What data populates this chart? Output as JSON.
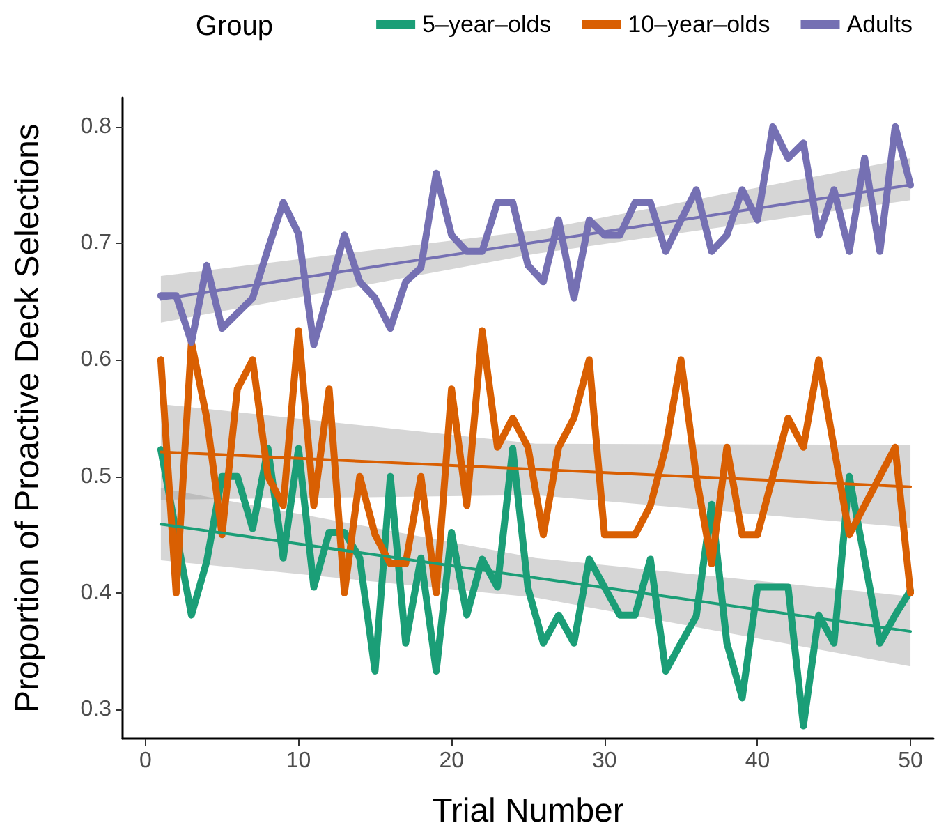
{
  "chart_data": {
    "type": "line",
    "xlabel": "Trial Number",
    "ylabel": "Proportion of Proactive Deck Selections",
    "legend_title": "Group",
    "legend": "top right",
    "grid": false,
    "xlim": [
      -1.5,
      51.5
    ],
    "xticks": [
      0,
      10,
      20,
      30,
      40,
      50
    ],
    "ylim": [
      0.275,
      0.825
    ],
    "yticks": [
      0.3,
      0.4,
      0.5,
      0.6,
      0.7,
      0.8
    ],
    "x": [
      1,
      2,
      3,
      4,
      5,
      6,
      7,
      8,
      9,
      10,
      11,
      12,
      13,
      14,
      15,
      16,
      17,
      18,
      19,
      20,
      21,
      22,
      23,
      24,
      25,
      26,
      27,
      28,
      29,
      30,
      31,
      32,
      33,
      34,
      35,
      36,
      37,
      38,
      39,
      40,
      41,
      42,
      43,
      44,
      45,
      46,
      47,
      48,
      49,
      50
    ],
    "series": [
      {
        "name": "5–year–olds",
        "color": "#1b9e77",
        "values": [
          0.523,
          0.452,
          0.381,
          0.427,
          0.5,
          0.5,
          0.455,
          0.524,
          0.43,
          0.524,
          0.405,
          0.452,
          0.452,
          0.43,
          0.333,
          0.5,
          0.357,
          0.43,
          0.333,
          0.452,
          0.381,
          0.429,
          0.405,
          0.524,
          0.404,
          0.357,
          0.381,
          0.357,
          0.429,
          0.405,
          0.381,
          0.381,
          0.429,
          0.333,
          0.357,
          0.38,
          0.476,
          0.357,
          0.31,
          0.405,
          0.405,
          0.405,
          0.286,
          0.381,
          0.357,
          0.5,
          0.429,
          0.357,
          0.381,
          0.402
        ]
      },
      {
        "name": "10–year–olds",
        "color": "#d95f02",
        "values": [
          0.6,
          0.4,
          0.615,
          0.55,
          0.45,
          0.575,
          0.6,
          0.5,
          0.475,
          0.625,
          0.475,
          0.575,
          0.4,
          0.5,
          0.45,
          0.425,
          0.425,
          0.5,
          0.4,
          0.575,
          0.475,
          0.625,
          0.525,
          0.55,
          0.525,
          0.45,
          0.525,
          0.55,
          0.6,
          0.45,
          0.45,
          0.45,
          0.475,
          0.525,
          0.6,
          0.5,
          0.425,
          0.525,
          0.45,
          0.45,
          0.5,
          0.55,
          0.525,
          0.6,
          0.525,
          0.45,
          0.475,
          0.5,
          0.525,
          0.4
        ]
      },
      {
        "name": "Adults",
        "color": "#7570b3",
        "values": [
          0.655,
          0.655,
          0.615,
          0.681,
          0.627,
          0.64,
          0.653,
          0.695,
          0.735,
          0.708,
          0.613,
          0.66,
          0.707,
          0.667,
          0.653,
          0.627,
          0.667,
          0.679,
          0.76,
          0.707,
          0.693,
          0.693,
          0.735,
          0.735,
          0.681,
          0.667,
          0.72,
          0.653,
          0.72,
          0.707,
          0.707,
          0.735,
          0.735,
          0.693,
          0.72,
          0.746,
          0.693,
          0.707,
          0.746,
          0.72,
          0.8,
          0.773,
          0.786,
          0.707,
          0.746,
          0.693,
          0.773,
          0.693,
          0.8,
          0.75
        ]
      },
      {
        "color": "#1b9e77",
        "x": [
          1,
          25.5,
          50
        ],
        "values": [
          0.459,
          0.413,
          0.367
        ],
        "lower": [
          0.428,
          0.396,
          0.337
        ],
        "upper": [
          0.49,
          0.43,
          0.397
        ]
      },
      {
        "color": "#d95f02",
        "x": [
          1,
          25.5,
          50
        ],
        "values": [
          0.521,
          0.506,
          0.491
        ],
        "lower": [
          0.48,
          0.484,
          0.456
        ],
        "upper": [
          0.562,
          0.528,
          0.527
        ]
      },
      {
        "color": "#7570b3",
        "x": [
          1,
          25.5,
          50
        ],
        "values": [
          0.652,
          0.701,
          0.75
        ],
        "lower": [
          0.632,
          0.691,
          0.737
        ],
        "upper": [
          0.672,
          0.711,
          0.773
        ]
      }
    ]
  }
}
